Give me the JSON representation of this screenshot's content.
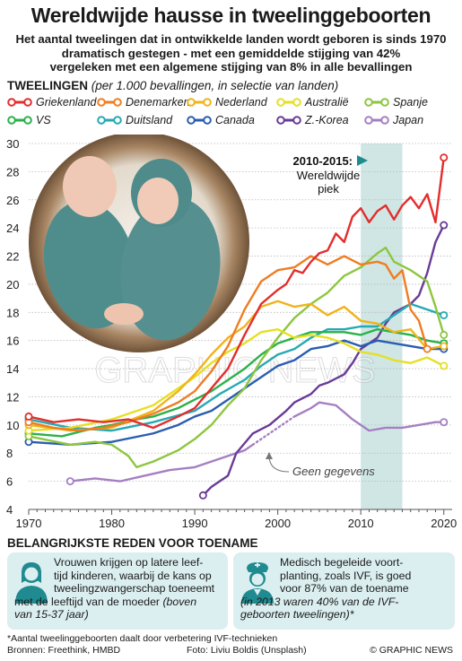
{
  "header": {
    "title": "Wereldwijde hausse in tweelinggeboorten",
    "subtitle_lines": [
      "Het aantal tweelingen dat in ontwikkelde landen wordt geboren is sinds 1970",
      "dramatisch gestegen - met een gemiddelde stijging van 42%",
      "vergeleken met een algemene stijging van 8% in alle bevallingen"
    ]
  },
  "section": {
    "label": "TWEELINGEN",
    "note": "(per 1.000 bevallingen, in selectie van landen)"
  },
  "annotations": {
    "peak_years": "2010-2015:",
    "peak_label_1": "Wereldwijde",
    "peak_label_2": "piek",
    "no_data": "Geen gegevens",
    "watermark": "GRAPHIC NEWS"
  },
  "chart_data": {
    "type": "line",
    "xlim": [
      1970,
      2021
    ],
    "ylim": [
      4,
      30
    ],
    "x_ticks": [
      1970,
      1980,
      1990,
      2000,
      2010,
      2020
    ],
    "y_ticks": [
      4,
      6,
      8,
      10,
      12,
      14,
      16,
      18,
      20,
      22,
      24,
      26,
      28,
      30
    ],
    "highlight_range": [
      2010,
      2015
    ],
    "series": [
      {
        "name": "Griekenland",
        "color": "#e32d2d",
        "points": [
          [
            1970,
            10.6
          ],
          [
            1973,
            10.2
          ],
          [
            1976,
            10.4
          ],
          [
            1979,
            10.2
          ],
          [
            1982,
            10.4
          ],
          [
            1985,
            9.8
          ],
          [
            1988,
            10.6
          ],
          [
            1990,
            11.2
          ],
          [
            1992,
            12.6
          ],
          [
            1994,
            14.0
          ],
          [
            1996,
            16.4
          ],
          [
            1998,
            18.6
          ],
          [
            2000,
            19.6
          ],
          [
            2001,
            20.0
          ],
          [
            2002,
            21.0
          ],
          [
            2003,
            20.8
          ],
          [
            2004,
            21.6
          ],
          [
            2005,
            22.2
          ],
          [
            2006,
            22.4
          ],
          [
            2007,
            23.6
          ],
          [
            2008,
            23.0
          ],
          [
            2009,
            24.8
          ],
          [
            2010,
            25.4
          ],
          [
            2011,
            24.4
          ],
          [
            2012,
            25.2
          ],
          [
            2013,
            25.6
          ],
          [
            2014,
            24.6
          ],
          [
            2015,
            25.6
          ],
          [
            2016,
            26.2
          ],
          [
            2017,
            25.4
          ],
          [
            2018,
            26.4
          ],
          [
            2019,
            24.4
          ],
          [
            2020,
            29.0
          ]
        ]
      },
      {
        "name": "Denemarken",
        "color": "#ef7d22",
        "points": [
          [
            1970,
            10.2
          ],
          [
            1973,
            9.8
          ],
          [
            1976,
            9.6
          ],
          [
            1979,
            9.8
          ],
          [
            1982,
            10.2
          ],
          [
            1985,
            10.8
          ],
          [
            1988,
            11.6
          ],
          [
            1990,
            12.4
          ],
          [
            1992,
            13.8
          ],
          [
            1994,
            15.6
          ],
          [
            1996,
            18.2
          ],
          [
            1998,
            20.2
          ],
          [
            2000,
            21.0
          ],
          [
            2002,
            21.2
          ],
          [
            2004,
            22.0
          ],
          [
            2006,
            21.4
          ],
          [
            2008,
            22.0
          ],
          [
            2010,
            21.4
          ],
          [
            2012,
            21.6
          ],
          [
            2013,
            21.4
          ],
          [
            2014,
            20.4
          ],
          [
            2015,
            21.0
          ],
          [
            2016,
            18.2
          ],
          [
            2017,
            17.4
          ],
          [
            2018,
            15.4
          ]
        ]
      },
      {
        "name": "Nederland",
        "color": "#f0b31a",
        "points": [
          [
            1970,
            10.0
          ],
          [
            1975,
            9.6
          ],
          [
            1980,
            9.8
          ],
          [
            1985,
            11.0
          ],
          [
            1988,
            12.4
          ],
          [
            1990,
            13.6
          ],
          [
            1992,
            15.0
          ],
          [
            1994,
            16.2
          ],
          [
            1996,
            17.0
          ],
          [
            1998,
            18.4
          ],
          [
            2000,
            18.8
          ],
          [
            2002,
            18.4
          ],
          [
            2004,
            18.6
          ],
          [
            2006,
            17.8
          ],
          [
            2008,
            18.4
          ],
          [
            2010,
            17.4
          ],
          [
            2012,
            17.2
          ],
          [
            2014,
            16.6
          ],
          [
            2016,
            16.8
          ],
          [
            2018,
            15.4
          ],
          [
            2020,
            15.6
          ]
        ]
      },
      {
        "name": "Australië",
        "color": "#e6df24",
        "points": [
          [
            1970,
            9.6
          ],
          [
            1975,
            9.8
          ],
          [
            1980,
            10.4
          ],
          [
            1985,
            11.4
          ],
          [
            1988,
            12.6
          ],
          [
            1990,
            13.4
          ],
          [
            1992,
            14.4
          ],
          [
            1994,
            15.2
          ],
          [
            1996,
            15.8
          ],
          [
            1998,
            16.6
          ],
          [
            2000,
            16.8
          ],
          [
            2002,
            16.2
          ],
          [
            2004,
            16.4
          ],
          [
            2006,
            16.2
          ],
          [
            2008,
            15.8
          ],
          [
            2010,
            15.2
          ],
          [
            2012,
            15.0
          ],
          [
            2014,
            14.6
          ],
          [
            2016,
            14.4
          ],
          [
            2018,
            14.8
          ],
          [
            2020,
            14.2
          ]
        ]
      },
      {
        "name": "Spanje",
        "color": "#8dc63f",
        "points": [
          [
            1970,
            9.2
          ],
          [
            1975,
            8.6
          ],
          [
            1978,
            8.8
          ],
          [
            1980,
            8.6
          ],
          [
            1982,
            7.8
          ],
          [
            1983,
            7.0
          ],
          [
            1985,
            7.4
          ],
          [
            1988,
            8.2
          ],
          [
            1990,
            9.0
          ],
          [
            1992,
            10.0
          ],
          [
            1994,
            11.4
          ],
          [
            1996,
            12.6
          ],
          [
            1998,
            14.6
          ],
          [
            2000,
            16.2
          ],
          [
            2002,
            17.6
          ],
          [
            2004,
            18.6
          ],
          [
            2006,
            19.4
          ],
          [
            2008,
            20.6
          ],
          [
            2010,
            21.2
          ],
          [
            2012,
            22.2
          ],
          [
            2013,
            22.6
          ],
          [
            2014,
            21.6
          ],
          [
            2016,
            21.0
          ],
          [
            2018,
            20.2
          ],
          [
            2019,
            18.4
          ],
          [
            2020,
            16.4
          ]
        ]
      },
      {
        "name": "VS",
        "color": "#2bb14a",
        "points": [
          [
            1970,
            9.4
          ],
          [
            1974,
            9.2
          ],
          [
            1978,
            9.8
          ],
          [
            1980,
            10.0
          ],
          [
            1983,
            10.4
          ],
          [
            1985,
            10.6
          ],
          [
            1988,
            11.2
          ],
          [
            1990,
            11.8
          ],
          [
            1992,
            12.4
          ],
          [
            1994,
            13.2
          ],
          [
            1996,
            14.0
          ],
          [
            1998,
            15.0
          ],
          [
            2000,
            15.8
          ],
          [
            2002,
            16.2
          ],
          [
            2004,
            16.6
          ],
          [
            2006,
            16.6
          ],
          [
            2008,
            16.6
          ],
          [
            2010,
            16.4
          ],
          [
            2012,
            16.8
          ],
          [
            2014,
            16.6
          ],
          [
            2016,
            16.4
          ],
          [
            2018,
            16.0
          ],
          [
            2020,
            15.8
          ]
        ]
      },
      {
        "name": "Duitsland",
        "color": "#26a9b2",
        "points": [
          [
            1970,
            10.4
          ],
          [
            1975,
            9.8
          ],
          [
            1980,
            9.6
          ],
          [
            1985,
            10.2
          ],
          [
            1990,
            11.0
          ],
          [
            1993,
            12.2
          ],
          [
            1996,
            13.2
          ],
          [
            1998,
            14.2
          ],
          [
            2000,
            15.0
          ],
          [
            2002,
            15.4
          ],
          [
            2004,
            16.2
          ],
          [
            2006,
            16.8
          ],
          [
            2008,
            16.8
          ],
          [
            2010,
            17.0
          ],
          [
            2012,
            17.0
          ],
          [
            2014,
            17.8
          ],
          [
            2016,
            18.6
          ],
          [
            2018,
            18.2
          ],
          [
            2020,
            17.8
          ]
        ]
      },
      {
        "name": "Canada",
        "color": "#2a5db0",
        "points": [
          [
            1970,
            8.8
          ],
          [
            1975,
            8.6
          ],
          [
            1980,
            8.8
          ],
          [
            1985,
            9.4
          ],
          [
            1988,
            10.0
          ],
          [
            1990,
            10.6
          ],
          [
            1992,
            11.0
          ],
          [
            1994,
            11.8
          ],
          [
            1996,
            12.6
          ],
          [
            1998,
            13.4
          ],
          [
            2000,
            14.2
          ],
          [
            2002,
            14.6
          ],
          [
            2004,
            15.4
          ],
          [
            2006,
            15.6
          ],
          [
            2008,
            16.0
          ],
          [
            2010,
            15.6
          ],
          [
            2012,
            16.0
          ],
          [
            2014,
            15.8
          ],
          [
            2016,
            15.6
          ],
          [
            2018,
            15.4
          ],
          [
            2020,
            15.4
          ]
        ]
      },
      {
        "name": "Z.-Korea",
        "color": "#6a3b96",
        "points": [
          [
            1991,
            5.0
          ],
          [
            1992,
            5.6
          ],
          [
            1994,
            6.4
          ],
          [
            1995,
            8.0
          ],
          [
            1997,
            9.4
          ],
          [
            1999,
            10.0
          ],
          [
            2001,
            11.0
          ],
          [
            2002,
            11.6
          ],
          [
            2004,
            12.2
          ],
          [
            2005,
            12.8
          ],
          [
            2006,
            13.0
          ],
          [
            2008,
            13.6
          ],
          [
            2009,
            14.4
          ],
          [
            2010,
            15.4
          ],
          [
            2012,
            16.2
          ],
          [
            2013,
            17.2
          ],
          [
            2014,
            18.0
          ],
          [
            2016,
            18.6
          ],
          [
            2017,
            19.2
          ],
          [
            2018,
            20.8
          ],
          [
            2019,
            23.0
          ],
          [
            2020,
            24.2
          ]
        ]
      },
      {
        "name": "Japan",
        "color": "#a57fc2",
        "points": [
          [
            1975,
            6.0
          ],
          [
            1978,
            6.2
          ],
          [
            1981,
            6.0
          ],
          [
            1984,
            6.4
          ],
          [
            1987,
            6.8
          ],
          [
            1990,
            7.0
          ],
          [
            1992,
            7.4
          ],
          [
            1994,
            7.8
          ],
          [
            1996,
            8.2
          ],
          [
            1997,
            8.6
          ],
          [
            2002,
            10.6
          ],
          [
            2004,
            11.2
          ],
          [
            2005,
            11.6
          ],
          [
            2007,
            11.4
          ],
          [
            2009,
            10.4
          ],
          [
            2011,
            9.6
          ],
          [
            2013,
            9.8
          ],
          [
            2015,
            9.8
          ],
          [
            2017,
            10.0
          ],
          [
            2019,
            10.2
          ],
          [
            2020,
            10.2
          ]
        ],
        "gap": [
          [
            1997,
            8.6
          ],
          [
            2002,
            10.6
          ]
        ]
      }
    ]
  },
  "reasons": {
    "title": "BELANGRIJKSTE REDEN VOOR TOENAME",
    "left_lines": [
      "Vrouwen krijgen op latere leef-",
      "tijd kinderen, waarbij de kans op",
      "tweelingzwangerschap toeneemt",
      "met de leeftijd van de moeder"
    ],
    "left_note_1": "(boven",
    "left_note_2": "van 15-37 jaar)",
    "right_lines": [
      "Medisch begeleide voort-",
      "planting, zoals IVF, is goed",
      "voor 87% van de toename"
    ],
    "right_note_lines": [
      "(in 2013 waren 40% van de IVF-",
      "geboorten tweelingen)*"
    ]
  },
  "footer": {
    "footnote": "*Aantal tweelinggeboorten daalt door verbetering IVF-technieken",
    "sources": "Bronnen: Freethink, HMBD",
    "photo": "Foto: Liviu Boldis (Unsplash)",
    "brand": "© GRAPHIC NEWS"
  }
}
